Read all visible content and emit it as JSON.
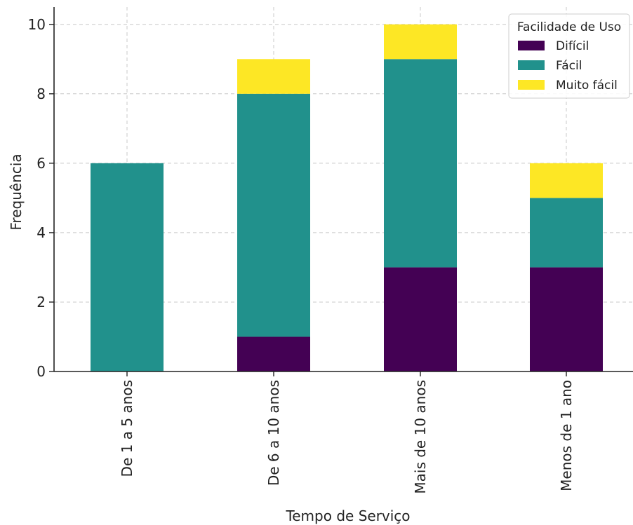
{
  "chart_data": {
    "type": "bar",
    "stacked": true,
    "title": "",
    "xlabel": "Tempo de Serviço",
    "ylabel": "Frequência",
    "categories": [
      "De 1 a 5 anos",
      "De 6 a 10 anos",
      "Mais de 10 anos",
      "Menos de 1 ano"
    ],
    "series": [
      {
        "name": "Difícil",
        "values": [
          0,
          1,
          3,
          3
        ],
        "color": "#440154"
      },
      {
        "name": "Fácil",
        "values": [
          6,
          7,
          6,
          2
        ],
        "color": "#21918c"
      },
      {
        "name": "Muito fácil",
        "values": [
          0,
          1,
          1,
          1
        ],
        "color": "#fde725"
      }
    ],
    "ylim": [
      0,
      10.5
    ],
    "yticks": [
      0,
      2,
      4,
      6,
      8,
      10
    ],
    "grid": true,
    "legend": {
      "title": "Facilidade de Uso",
      "position": "top-right"
    }
  }
}
